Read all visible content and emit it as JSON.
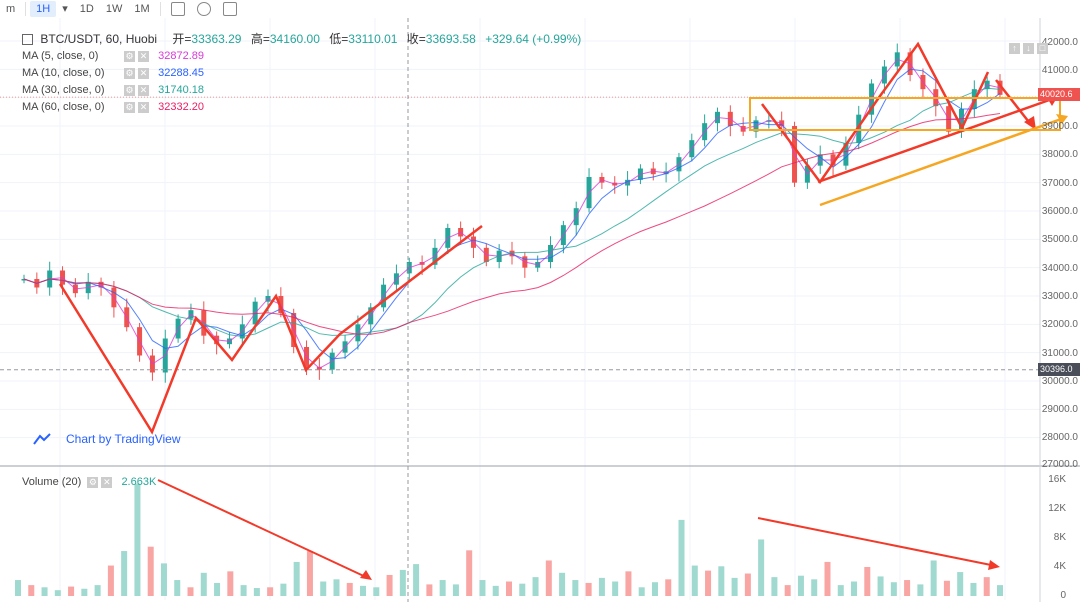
{
  "toolbar": {
    "items": [
      "m",
      "1H",
      "1D",
      "1W",
      "1M"
    ],
    "active": "1H"
  },
  "main_legend": {
    "symbol": "BTC/USDT, 60, Huobi",
    "open_label": "开=",
    "open": "33363.29",
    "high_label": "高=",
    "high": "34160.00",
    "low_label": "低=",
    "low": "33110.01",
    "close_label": "收=",
    "close": "33693.58",
    "change": "+329.64 (+0.99%)"
  },
  "ma_lines": [
    {
      "label": "MA (5, close, 0)",
      "value": "32872.89",
      "color": "#d63cd6"
    },
    {
      "label": "MA (10, close, 0)",
      "value": "32288.45",
      "color": "#2962ff"
    },
    {
      "label": "MA (30, close, 0)",
      "value": "31740.18",
      "color": "#26a69a"
    },
    {
      "label": "MA (60, close, 0)",
      "value": "32332.20",
      "color": "#e91e63"
    }
  ],
  "price_axis": [
    "42000.0",
    "41000.0",
    "39000.0",
    "38000.0",
    "37000.0",
    "36000.0",
    "35000.0",
    "34000.0",
    "33000.0",
    "32000.0",
    "31000.0",
    "30000.0",
    "29000.0",
    "28000.0",
    "27000.0"
  ],
  "price_tags": {
    "current": "40020.6",
    "crosshair": "30396.0"
  },
  "volume_legend": {
    "label": "Volume (20)",
    "value": "2.663K"
  },
  "volume_axis": [
    "16K",
    "12K",
    "8K",
    "4K",
    "0"
  ],
  "branding": "Chart by TradingView",
  "colors": {
    "up": "#26a69a",
    "down": "#ef5350",
    "annotation": "#f23a2a",
    "box": "#f5a623",
    "crosshair": "#9598a1"
  },
  "chart_data": {
    "type": "candlestick",
    "price_ylim": [
      27000,
      42500
    ],
    "volume_ylim": [
      0,
      17000
    ],
    "price_path": [
      33600,
      33300,
      33900,
      33400,
      33100,
      33500,
      33300,
      32600,
      31900,
      30900,
      30300,
      31500,
      32200,
      32500,
      31600,
      31300,
      31500,
      32000,
      32800,
      33000,
      32400,
      31200,
      30500,
      30400,
      31000,
      31400,
      32000,
      32600,
      33400,
      33800,
      34200,
      34100,
      34700,
      35400,
      35100,
      34700,
      34200,
      34600,
      34400,
      34000,
      34200,
      34800,
      35500,
      36100,
      37200,
      37000,
      36900,
      37100,
      37500,
      37300,
      37400,
      37900,
      38500,
      39100,
      39500,
      39000,
      38800,
      39200,
      39200,
      39000,
      37000,
      37600,
      38000,
      37600,
      38400,
      39400,
      40500,
      41100,
      41600,
      40800,
      40300,
      39700,
      38800,
      39600,
      40300,
      40600,
      40100
    ],
    "volume_path": [
      2200,
      1500,
      1200,
      800,
      1300,
      1000,
      1500,
      4200,
      6200,
      15500,
      6800,
      4500,
      2200,
      1200,
      3200,
      1800,
      3400,
      1500,
      1100,
      1200,
      1700,
      4700,
      6200,
      2000,
      2300,
      1800,
      1400,
      1200,
      2900,
      3600,
      4400,
      1600,
      2200,
      1600,
      6300,
      2200,
      1400,
      2000,
      1700,
      2600,
      4900,
      3200,
      2200,
      1800,
      2500,
      2000,
      3400,
      1200,
      1900,
      2300,
      10500,
      4200,
      3500,
      4100,
      2500,
      3100,
      7800,
      2600,
      1500,
      2800,
      2300,
      4700,
      1500,
      2000,
      4000,
      2700,
      1900,
      2200,
      1600,
      4900,
      2100,
      3300,
      1800,
      2600,
      1500
    ]
  }
}
